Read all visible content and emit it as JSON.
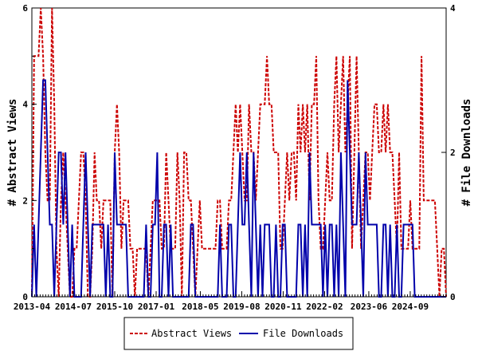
{
  "chart_data": {
    "type": "line",
    "ylabel_left": "# Abstract Views",
    "ylabel_right": "# File Downloads",
    "ylim_left": [
      0,
      6
    ],
    "ylim_right": [
      0,
      4
    ],
    "yticks_left": [
      "0",
      "2",
      "4",
      "6"
    ],
    "yticks_right": [
      "0",
      "2",
      "4"
    ],
    "xticks": [
      "2013-04",
      "2014-07",
      "2015-10",
      "2017-01",
      "2018-05",
      "2019-08",
      "2020-11",
      "2022-02",
      "2023-06",
      "2024-09"
    ],
    "x_range": [
      "2013-04",
      "2025-10"
    ],
    "legend_position": "bottom-center",
    "series": [
      {
        "name": "Abstract Views",
        "axis": "left",
        "color": "#cc0000",
        "style": "dashed",
        "values": [
          0,
          5,
          5,
          5,
          6,
          5,
          3,
          2,
          2,
          6,
          4,
          1,
          0,
          2,
          3,
          2,
          1,
          0,
          0,
          1,
          1,
          2,
          3,
          3,
          2,
          0,
          0,
          1,
          3,
          2,
          2,
          1,
          2,
          2,
          2,
          2,
          0,
          3,
          4,
          3,
          1,
          2,
          2,
          2,
          1,
          1,
          0,
          1,
          1,
          1,
          1,
          1,
          0,
          1,
          2,
          2,
          2,
          2,
          1,
          1,
          3,
          2,
          1,
          1,
          1,
          3,
          2,
          0,
          3,
          3,
          2,
          2,
          1,
          0,
          1,
          2,
          1,
          1,
          1,
          1,
          1,
          1,
          1,
          2,
          2,
          1,
          1,
          1,
          2,
          2,
          3,
          4,
          3,
          4,
          3,
          2,
          2,
          4,
          3,
          3,
          2,
          3,
          4,
          4,
          4,
          5,
          4,
          4,
          3,
          3,
          3,
          1,
          1,
          2,
          3,
          2,
          3,
          3,
          2,
          4,
          3,
          4,
          3,
          4,
          2,
          4,
          4,
          5,
          2,
          1,
          1,
          2,
          3,
          2,
          2,
          4,
          5,
          3,
          4,
          5,
          3,
          4,
          5,
          1,
          3,
          5,
          3,
          1,
          2,
          3,
          3,
          2,
          3,
          4,
          4,
          3,
          3,
          4,
          3,
          4,
          3,
          3,
          2,
          1,
          3,
          1,
          1,
          1,
          1,
          2,
          1,
          1,
          1,
          1,
          5,
          2,
          2,
          2,
          2,
          2,
          2,
          1,
          0,
          1,
          1,
          0
        ]
      },
      {
        "name": "File Downloads",
        "axis": "right",
        "color": "#0000aa",
        "style": "solid",
        "values": [
          0,
          1,
          0,
          1,
          2,
          3,
          3,
          2,
          1,
          1,
          0,
          1,
          2,
          2,
          1,
          2,
          1,
          0,
          1,
          0,
          0,
          0,
          0,
          1,
          2,
          1,
          0,
          1,
          1,
          1,
          1,
          1,
          1,
          0,
          1,
          0,
          0,
          2,
          1,
          1,
          1,
          1,
          1,
          0,
          0,
          0,
          0,
          0,
          0,
          0,
          0,
          1,
          0,
          0,
          1,
          1,
          2,
          0,
          0,
          1,
          1,
          0,
          1,
          0,
          0,
          0,
          0,
          0,
          0,
          0,
          0,
          1,
          1,
          0,
          0,
          0,
          0,
          0,
          0,
          0,
          0,
          0,
          0,
          0,
          1,
          0,
          0,
          0,
          1,
          1,
          0,
          0,
          1,
          2,
          1,
          1,
          2,
          1,
          0,
          2,
          1,
          0,
          1,
          0,
          1,
          1,
          1,
          0,
          0,
          1,
          0,
          0,
          1,
          1,
          0,
          0,
          0,
          0,
          0,
          1,
          1,
          0,
          1,
          0,
          2,
          1,
          1,
          1,
          1,
          1,
          0,
          1,
          0,
          1,
          1,
          0,
          1,
          0,
          2,
          1,
          0,
          3,
          2,
          1,
          1,
          1,
          2,
          1,
          0,
          2,
          1,
          1,
          1,
          1,
          1,
          0,
          0,
          1,
          1,
          0,
          1,
          0,
          0,
          1,
          0,
          0,
          1,
          1,
          1,
          1,
          1,
          0,
          0,
          0,
          0,
          0,
          0,
          0,
          0,
          0,
          0,
          0,
          0,
          0,
          0,
          0
        ]
      }
    ]
  }
}
